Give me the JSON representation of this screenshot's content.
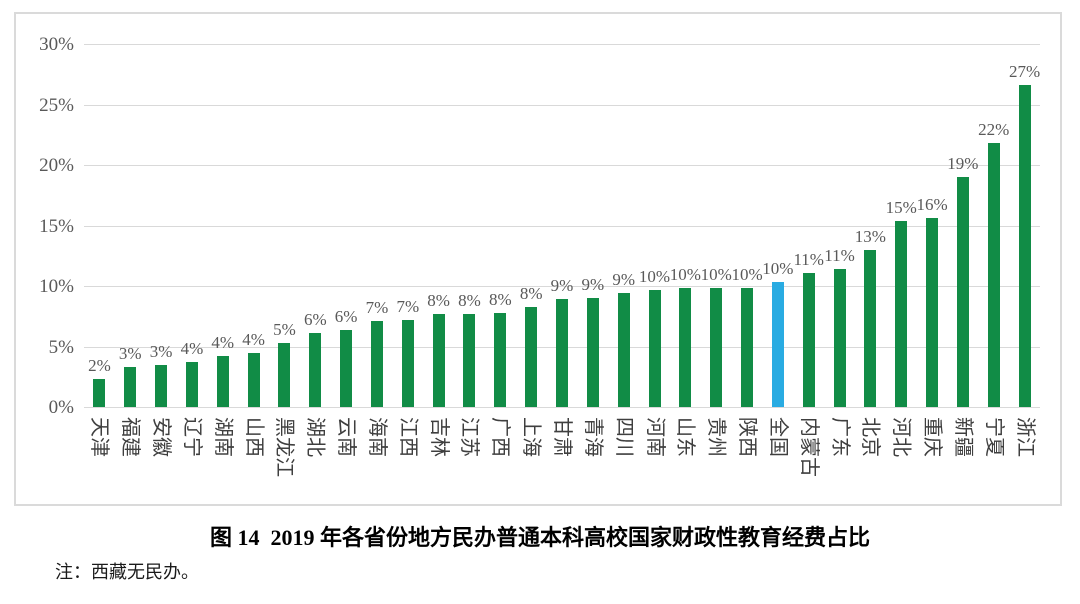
{
  "figure": {
    "caption": "图 14  2019 年各省份地方民办普通本科高校国家财政性教育经费占比",
    "note": "注：西藏无民办。"
  },
  "chart_data": {
    "type": "bar",
    "title": "图 14  2019 年各省份地方民办普通本科高校国家财政性教育经费占比",
    "xlabel": "",
    "ylabel": "",
    "ylim": [
      0,
      30
    ],
    "grid": true,
    "legend_position": "none",
    "yticks": [
      {
        "value": 0,
        "label": "0%"
      },
      {
        "value": 5,
        "label": "5%"
      },
      {
        "value": 10,
        "label": "10%"
      },
      {
        "value": 15,
        "label": "15%"
      },
      {
        "value": 20,
        "label": "20%"
      },
      {
        "value": 25,
        "label": "25%"
      },
      {
        "value": 30,
        "label": "30%"
      }
    ],
    "categories": [
      "天津",
      "福建",
      "安徽",
      "辽宁",
      "湖南",
      "山西",
      "黑龙江",
      "湖北",
      "云南",
      "海南",
      "江西",
      "吉林",
      "江苏",
      "广西",
      "上海",
      "甘肃",
      "青海",
      "四川",
      "河南",
      "山东",
      "贵州",
      "陕西",
      "全国",
      "内蒙古",
      "广东",
      "北京",
      "河北",
      "重庆",
      "新疆",
      "宁夏",
      "浙江"
    ],
    "values": [
      2,
      3,
      3,
      4,
      4,
      4,
      5,
      6,
      6,
      7,
      7,
      8,
      8,
      8,
      8,
      9,
      9,
      9,
      10,
      10,
      10,
      10,
      10,
      11,
      11,
      13,
      15,
      16,
      19,
      22,
      27
    ],
    "value_labels": [
      "2%",
      "3%",
      "3%",
      "4%",
      "4%",
      "4%",
      "5%",
      "6%",
      "6%",
      "7%",
      "7%",
      "8%",
      "8%",
      "8%",
      "8%",
      "9%",
      "9%",
      "9%",
      "10%",
      "10%",
      "10%",
      "10%",
      "10%",
      "11%",
      "11%",
      "13%",
      "15%",
      "16%",
      "19%",
      "22%",
      "27%"
    ],
    "bar_heights_precise": [
      2.3,
      3.3,
      3.5,
      3.7,
      4.2,
      4.5,
      5.3,
      6.1,
      6.4,
      7.1,
      7.2,
      7.7,
      7.7,
      7.8,
      8.3,
      8.9,
      9.0,
      9.4,
      9.7,
      9.8,
      9.8,
      9.8,
      10.3,
      11.1,
      11.4,
      13.0,
      15.4,
      15.6,
      19.0,
      21.8,
      26.6
    ],
    "highlight_category": "全国",
    "bar_color": "#118C46",
    "highlight_color": "#29ABE2",
    "grid_color": "#D9D9D9",
    "axis_text_color": "#595959",
    "category_text_color": "#3F3F3F"
  }
}
